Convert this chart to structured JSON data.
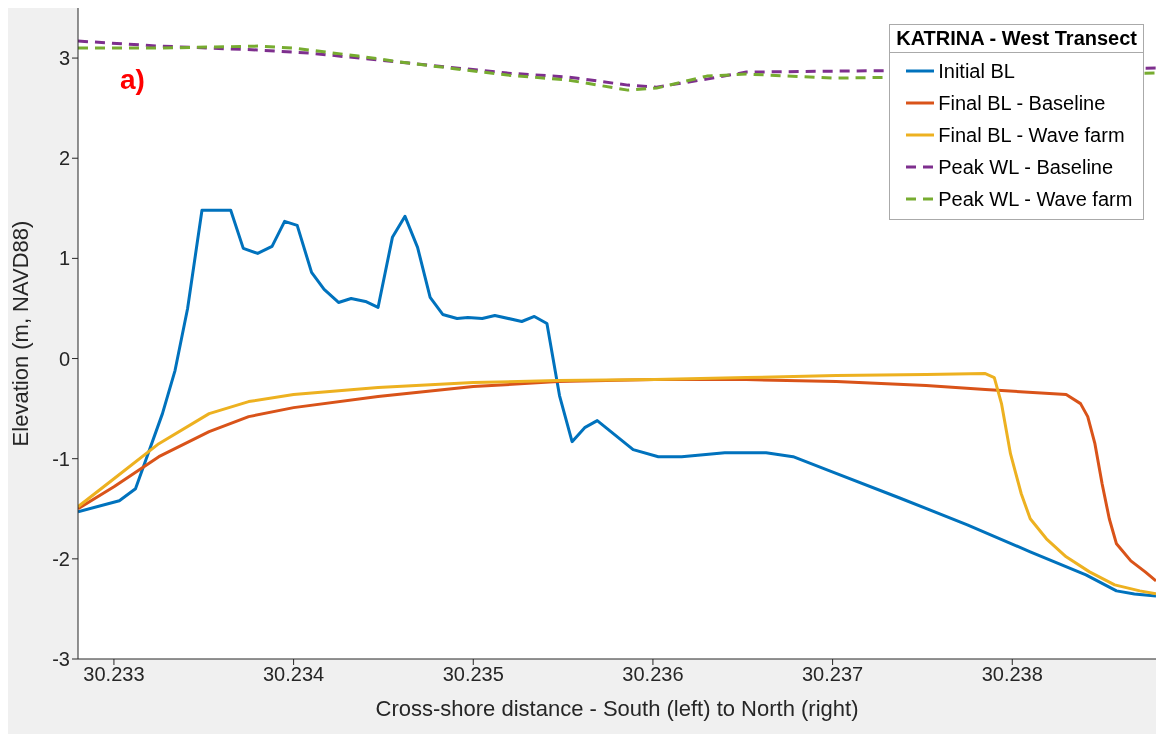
{
  "chart_data": {
    "type": "line",
    "xlabel": "Cross-shore distance - South (left) to North (right)",
    "ylabel": "Elevation (m, NAVD88)",
    "legend_title": "KATRINA - West Transect",
    "annotations": [
      "a)"
    ],
    "legend": "top right",
    "grid": false,
    "marker": "none",
    "xlim": [
      30.2328,
      30.2388
    ],
    "ylim": [
      -3,
      3.5
    ],
    "xticks": [
      30.233,
      30.234,
      30.235,
      30.236,
      30.237,
      30.238
    ],
    "yticks": [
      -3,
      -2,
      -1,
      0,
      1,
      2,
      3
    ],
    "series": [
      {
        "name": "Initial BL",
        "color": "#0072bd",
        "line_style": "solid",
        "x": [
          30.2328,
          30.23303,
          30.23312,
          30.23318,
          30.23327,
          30.23334,
          30.23341,
          30.23349,
          30.23365,
          30.23372,
          30.2338,
          30.23388,
          30.23395,
          30.23402,
          30.2341,
          30.23417,
          30.23425,
          30.23432,
          30.2344,
          30.23447,
          30.23455,
          30.23462,
          30.23469,
          30.23476,
          30.23483,
          30.23491,
          30.23497,
          30.23505,
          30.23512,
          30.23527,
          30.23534,
          30.23541,
          30.23548,
          30.23555,
          30.23562,
          30.23569,
          30.23589,
          30.23603,
          30.23616,
          30.2364,
          30.23663,
          30.23678,
          30.23698,
          30.23737,
          30.23775,
          30.2381,
          30.23841,
          30.23858,
          30.23868,
          30.2388
        ],
        "values": [
          -1.53,
          -1.42,
          -1.3,
          -1.0,
          -0.55,
          -0.12,
          0.5,
          1.48,
          1.48,
          1.1,
          1.05,
          1.12,
          1.37,
          1.33,
          0.86,
          0.69,
          0.56,
          0.6,
          0.57,
          0.51,
          1.21,
          1.42,
          1.11,
          0.61,
          0.44,
          0.4,
          0.41,
          0.4,
          0.43,
          0.37,
          0.42,
          0.35,
          -0.37,
          -0.83,
          -0.69,
          -0.62,
          -0.91,
          -0.98,
          -0.98,
          -0.94,
          -0.94,
          -0.98,
          -1.12,
          -1.39,
          -1.66,
          -1.93,
          -2.16,
          -2.32,
          -2.35,
          -2.37
        ]
      },
      {
        "name": "Final BL - Baseline",
        "color": "#d95319",
        "line_style": "solid",
        "x": [
          30.2328,
          30.233,
          30.23325,
          30.23353,
          30.23375,
          30.234,
          30.23447,
          30.235,
          30.23547,
          30.23601,
          30.23652,
          30.23702,
          30.23752,
          30.23785,
          30.2383,
          30.23838,
          30.23842,
          30.23846,
          30.2385,
          30.23854,
          30.23858,
          30.23866,
          30.23874,
          30.2388
        ],
        "values": [
          -1.5,
          -1.28,
          -0.98,
          -0.73,
          -0.58,
          -0.49,
          -0.38,
          -0.28,
          -0.23,
          -0.21,
          -0.21,
          -0.23,
          -0.27,
          -0.31,
          -0.36,
          -0.45,
          -0.58,
          -0.85,
          -1.25,
          -1.6,
          -1.85,
          -2.02,
          -2.13,
          -2.22
        ]
      },
      {
        "name": "Final BL - Wave farm",
        "color": "#edb120",
        "line_style": "solid",
        "x": [
          30.2328,
          30.233,
          30.23325,
          30.23353,
          30.23375,
          30.234,
          30.23447,
          30.235,
          30.23547,
          30.23601,
          30.23652,
          30.23702,
          30.23752,
          30.23785,
          30.2379,
          30.23794,
          30.23799,
          30.23805,
          30.2381,
          30.23819,
          30.2383,
          30.23843,
          30.23857,
          30.23871,
          30.2388
        ],
        "values": [
          -1.48,
          -1.2,
          -0.85,
          -0.55,
          -0.43,
          -0.36,
          -0.29,
          -0.24,
          -0.22,
          -0.21,
          -0.19,
          -0.17,
          -0.16,
          -0.15,
          -0.19,
          -0.45,
          -0.95,
          -1.35,
          -1.6,
          -1.8,
          -1.98,
          -2.13,
          -2.26,
          -2.32,
          -2.35
        ]
      },
      {
        "name": "Peak WL - Baseline",
        "color": "#7e2f8e",
        "line_style": "dashed",
        "x": [
          30.2328,
          30.23325,
          30.23381,
          30.23409,
          30.23464,
          30.23519,
          30.23553,
          30.23586,
          30.23602,
          30.2363,
          30.23652,
          30.23702,
          30.2388
        ],
        "values": [
          3.17,
          3.12,
          3.08,
          3.05,
          2.95,
          2.85,
          2.81,
          2.73,
          2.71,
          2.79,
          2.86,
          2.87,
          2.9
        ]
      },
      {
        "name": "Peak WL - Wave farm",
        "color": "#77ac30",
        "line_style": "dashed",
        "x": [
          30.2328,
          30.23325,
          30.23353,
          30.23381,
          30.234,
          30.23436,
          30.23464,
          30.23519,
          30.23553,
          30.23586,
          30.23602,
          30.2363,
          30.23652,
          30.23702,
          30.2388
        ],
        "values": [
          3.1,
          3.1,
          3.11,
          3.12,
          3.1,
          3.02,
          2.95,
          2.83,
          2.78,
          2.68,
          2.7,
          2.82,
          2.84,
          2.8,
          2.85
        ]
      }
    ]
  }
}
